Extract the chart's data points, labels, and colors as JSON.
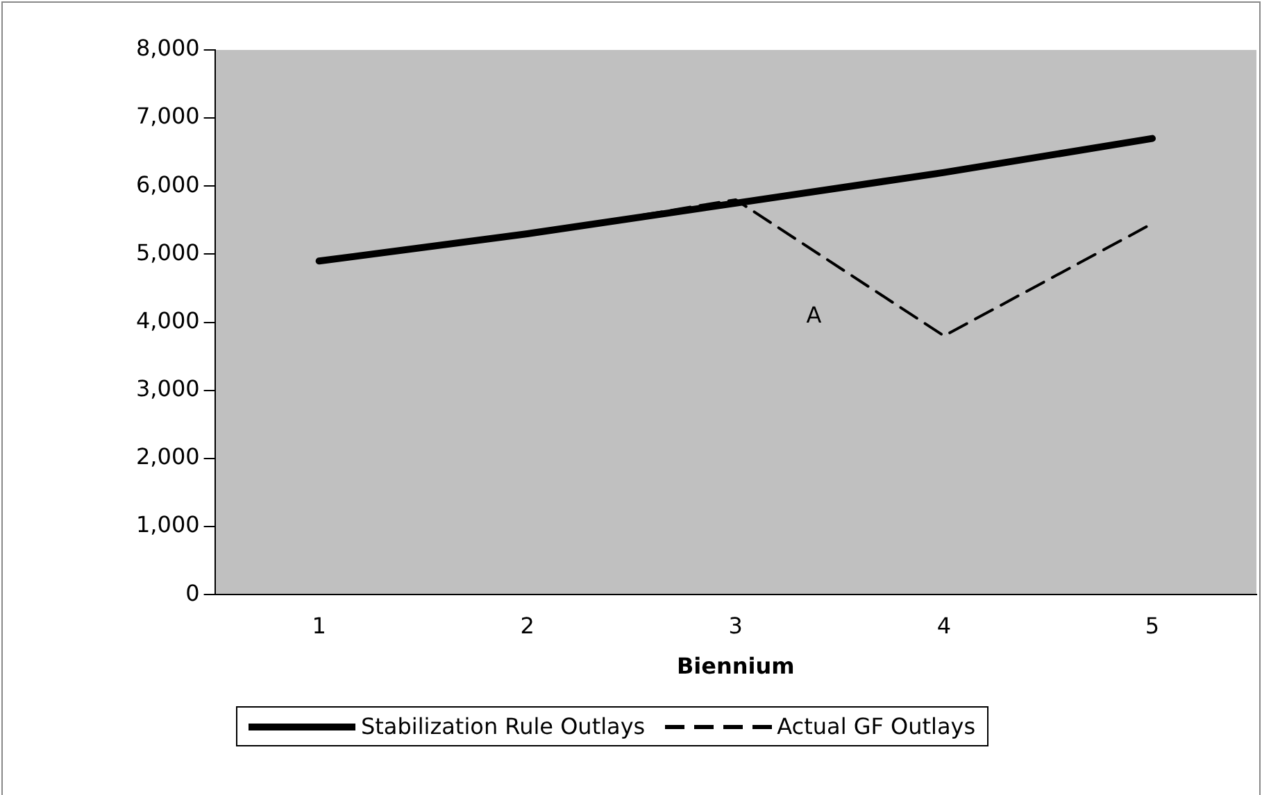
{
  "chart_data": {
    "type": "line",
    "xlabel": "Biennium",
    "categories": [
      "1",
      "2",
      "3",
      "4",
      "5"
    ],
    "series": [
      {
        "name": "Stabilization Rule Outlays",
        "color": "#000000",
        "values": [
          4900,
          5300,
          5750,
          6200,
          6700
        ],
        "line_style": "solid"
      },
      {
        "name": "Actual GF Outlays",
        "color": "#000000",
        "values": [
          null,
          5300,
          5800,
          3800,
          5450
        ],
        "line_style": "dashed"
      }
    ],
    "ylim": [
      0,
      8000
    ],
    "yticks": [
      0,
      {
        "value": 1000,
        "label": "1,000"
      },
      {
        "value": 2000,
        "label": "2,000"
      },
      {
        "value": 3000,
        "label": "3,000"
      },
      {
        "value": 4000,
        "label": "4,000"
      },
      {
        "value": 5000,
        "label": "5,000"
      },
      {
        "value": 6000,
        "label": "6,000"
      },
      {
        "value": 7000,
        "label": "7,000"
      },
      {
        "value": 8000,
        "label": "8,000"
      }
    ],
    "grid": false,
    "legend": "bottom",
    "marker": "none",
    "annotations": [
      "A"
    ]
  }
}
